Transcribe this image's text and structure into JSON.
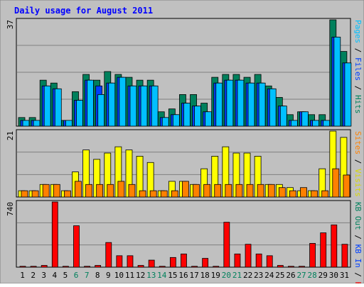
{
  "chart_data": {
    "type": "bar",
    "title": "Daily usage for August 2011",
    "categories": [
      "1",
      "2",
      "3",
      "4",
      "5",
      "6",
      "7",
      "8",
      "9",
      "10",
      "11",
      "12",
      "13",
      "14",
      "15",
      "16",
      "17",
      "18",
      "19",
      "20",
      "21",
      "22",
      "23",
      "24",
      "25",
      "26",
      "27",
      "28",
      "29",
      "30",
      "31"
    ],
    "weekend_days": [
      "6",
      "7",
      "13",
      "14",
      "20",
      "21",
      "27",
      "28"
    ],
    "panels": [
      {
        "name": "hits-files-pages",
        "ymax": 37,
        "ymax_label": "37",
        "side_label_parts": [
          {
            "text": "Hits",
            "color": "#00805c"
          },
          {
            "text": "Files",
            "color": "#0040ff"
          },
          {
            "text": "Pages",
            "color": "#00c0ff"
          }
        ],
        "separator": " / ",
        "series": [
          {
            "name": "Hits",
            "color": "#00805c",
            "values": [
              3,
              3,
              16,
              15,
              2,
              12,
              18,
              16,
              19,
              18,
              17,
              16,
              16,
              5,
              6,
              11,
              11,
              8,
              17,
              18,
              18,
              17,
              18,
              14,
              10,
              4,
              5,
              4,
              4,
              37,
              26
            ]
          },
          {
            "name": "Files",
            "color": "#0040ff",
            "values": [
              2,
              2,
              14,
              13,
              2,
              9,
              16,
              14,
              15,
              17,
              14,
              14,
              14,
              3,
              4,
              8,
              7,
              5,
              15,
              16,
              16,
              15,
              15,
              13,
              7,
              2,
              5,
              2,
              2,
              31,
              22
            ]
          },
          {
            "name": "Pages",
            "color": "#00c0ff",
            "values": [
              2,
              2,
              14,
              13,
              2,
              9,
              16,
              11,
              15,
              17,
              14,
              14,
              14,
              3,
              4,
              8,
              7,
              5,
              15,
              16,
              16,
              15,
              15,
              13,
              7,
              2,
              5,
              2,
              2,
              31,
              22
            ]
          }
        ]
      },
      {
        "name": "visits-sites",
        "ymax": 21,
        "ymax_label": "21",
        "side_label_parts": [
          {
            "text": "Visits",
            "color": "#d8d800"
          },
          {
            "text": "Sites",
            "color": "#ff8000"
          }
        ],
        "separator": " / ",
        "series": [
          {
            "name": "Visits",
            "color": "#ffff00",
            "values": [
              2,
              2,
              4,
              4,
              2,
              8,
              15,
              12,
              14,
              16,
              15,
              13,
              11,
              2,
              5,
              5,
              4,
              9,
              13,
              16,
              14,
              14,
              13,
              4,
              4,
              3,
              2,
              2,
              9,
              21,
              19
            ]
          },
          {
            "name": "Sites",
            "color": "#ff8000",
            "values": [
              2,
              2,
              4,
              4,
              2,
              5,
              4,
              4,
              4,
              5,
              4,
              2,
              2,
              2,
              2,
              5,
              4,
              4,
              4,
              4,
              4,
              4,
              4,
              4,
              3,
              2,
              3,
              2,
              2,
              9,
              7
            ]
          }
        ]
      },
      {
        "name": "kbytes",
        "ymax": 740,
        "ymax_label": "740",
        "side_label_parts": [
          {
            "text": "KB F",
            "color": "#ff0000"
          },
          {
            "text": "KB In",
            "color": "#0040ff"
          },
          {
            "text": "KB Out",
            "color": "#00805c"
          }
        ],
        "separator": " / ",
        "series": [
          {
            "name": "KB F",
            "color": "#ff0000",
            "values": [
              10,
              10,
              20,
              740,
              10,
              470,
              10,
              20,
              280,
              130,
              130,
              20,
              80,
              10,
              110,
              150,
              10,
              100,
              10,
              510,
              150,
              260,
              150,
              130,
              20,
              10,
              10,
              270,
              390,
              480,
              260
            ]
          }
        ]
      }
    ]
  },
  "colors": {
    "background": "#c0c0c0",
    "page": "#ffffff",
    "gridline": "#808080",
    "title": "#0000ff",
    "weekday_label": "#000000",
    "weekend_label": "#00805c"
  }
}
